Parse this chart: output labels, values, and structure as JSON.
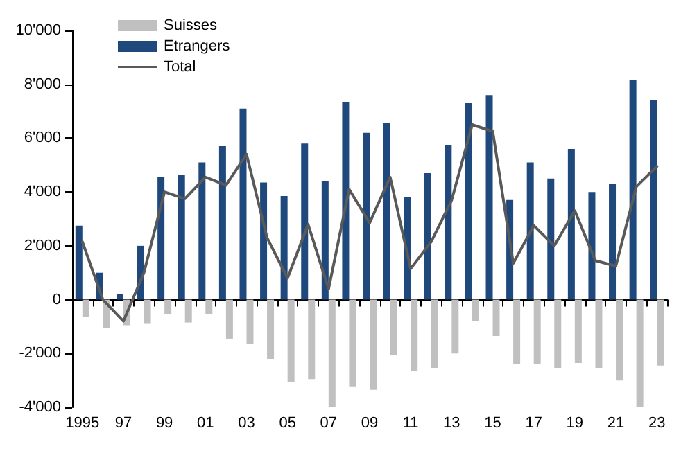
{
  "chart_data": {
    "type": "bar",
    "categories": [
      "1995",
      null,
      "97",
      null,
      "99",
      null,
      "01",
      null,
      "03",
      null,
      "05",
      null,
      "07",
      null,
      "09",
      null,
      "11",
      null,
      "13",
      null,
      "15",
      null,
      "17",
      null,
      "19",
      null,
      "21",
      null,
      "23"
    ],
    "series": [
      {
        "name": "Suisses",
        "color": "#c0c0c0",
        "values": [
          -650,
          -1050,
          -950,
          -900,
          -550,
          -850,
          -550,
          -1450,
          -1650,
          -2200,
          -3050,
          -2950,
          -4000,
          -3250,
          -3350,
          -2050,
          -2650,
          -2550,
          -2000,
          -800,
          -1350,
          -2400,
          -2400,
          -2550,
          -2350,
          -2550,
          -3000,
          -4000,
          -2450
        ]
      },
      {
        "name": "Etrangers",
        "color": "#1f497d",
        "values": [
          2750,
          1000,
          200,
          2000,
          4550,
          4650,
          5100,
          5700,
          7100,
          4350,
          3850,
          5800,
          4400,
          7350,
          6200,
          6550,
          3800,
          4700,
          5750,
          7300,
          7600,
          3700,
          5100,
          4500,
          5600,
          4000,
          4300,
          8150,
          7400
        ]
      },
      {
        "name": "Total",
        "type": "line",
        "color": "#595959",
        "values": [
          2150,
          0,
          -800,
          1000,
          4000,
          3750,
          4550,
          4250,
          5400,
          2300,
          800,
          2800,
          400,
          4100,
          2850,
          4550,
          1150,
          2150,
          3700,
          6500,
          6250,
          1350,
          2750,
          2000,
          3300,
          1450,
          1250,
          4200,
          4950
        ]
      }
    ],
    "ylim": [
      -4000,
      10000
    ],
    "yticks": [
      {
        "value": -4000,
        "label": "-4'000"
      },
      {
        "value": -2000,
        "label": "-2'000"
      },
      {
        "value": 0,
        "label": "0"
      },
      {
        "value": 2000,
        "label": "2'000"
      },
      {
        "value": 4000,
        "label": "4'000"
      },
      {
        "value": 6000,
        "label": "6'000"
      },
      {
        "value": 8000,
        "label": "8'000"
      },
      {
        "value": 10000,
        "label": "10'000"
      }
    ],
    "legend": "top left",
    "marker": "none",
    "line_style": "solid"
  }
}
